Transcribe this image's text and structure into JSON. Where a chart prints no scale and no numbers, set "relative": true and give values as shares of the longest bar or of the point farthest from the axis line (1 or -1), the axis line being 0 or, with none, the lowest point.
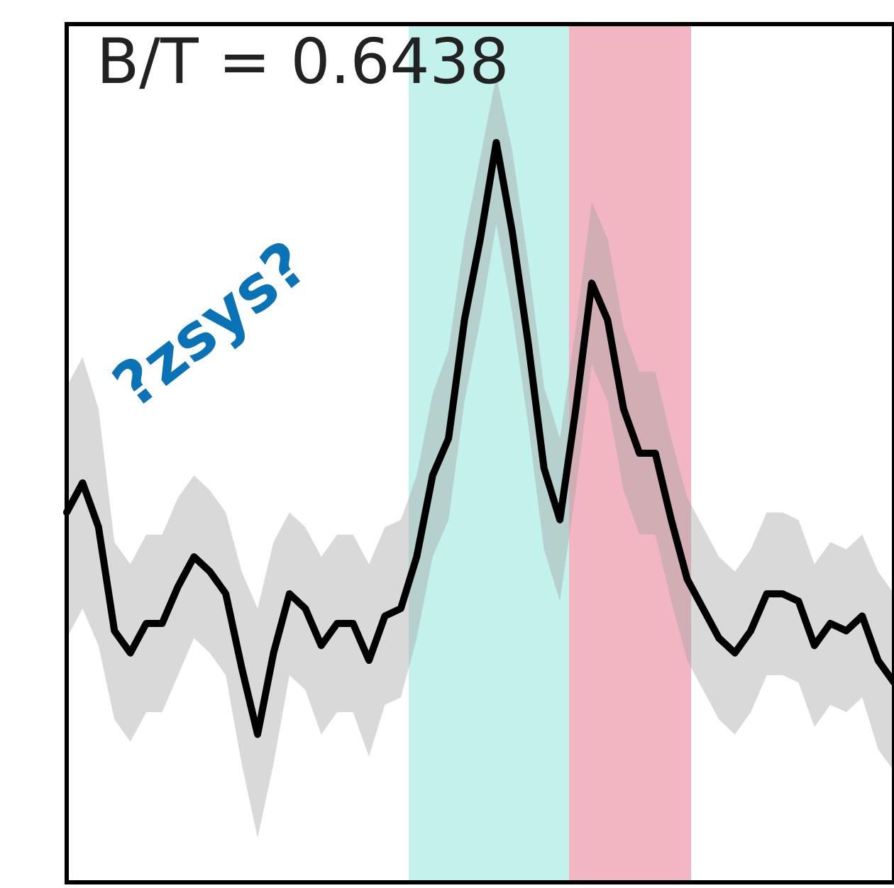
{
  "chart_data": {
    "type": "line",
    "relative": true,
    "categories": [
      null,
      null,
      null,
      null,
      null,
      null,
      null,
      null,
      null,
      null,
      null,
      null,
      null,
      null,
      null,
      null,
      null,
      null,
      null,
      null,
      null,
      null,
      null,
      null,
      null,
      null,
      null,
      null,
      null,
      null,
      null,
      null,
      null,
      null,
      null,
      null,
      null,
      null,
      null,
      null,
      null,
      null,
      null,
      null,
      null,
      null,
      null,
      null,
      null,
      null,
      null,
      null,
      null
    ],
    "series": [
      {
        "color": "#000000",
        "values": [
          0.5,
          0.54,
          0.48,
          0.34,
          0.31,
          0.35,
          0.35,
          0.4,
          0.44,
          0.42,
          0.39,
          0.29,
          0.2,
          0.31,
          0.39,
          0.37,
          0.32,
          0.35,
          0.35,
          0.3,
          0.36,
          0.37,
          0.44,
          0.55,
          0.6,
          0.76,
          0.87,
          1.0,
          0.88,
          0.73,
          0.56,
          0.49,
          0.64,
          0.81,
          0.76,
          0.64,
          0.58,
          0.58,
          0.49,
          0.41,
          0.37,
          0.33,
          0.31,
          0.34,
          0.39,
          0.39,
          0.38,
          0.32,
          0.35,
          0.34,
          0.36,
          0.3,
          0.27
        ],
        "upper": [
          0.67,
          0.71,
          0.64,
          0.46,
          0.43,
          0.47,
          0.47,
          0.52,
          0.55,
          0.53,
          0.5,
          0.42,
          0.37,
          0.46,
          0.5,
          0.48,
          0.44,
          0.47,
          0.47,
          0.43,
          0.48,
          0.49,
          0.55,
          0.66,
          0.72,
          0.87,
          0.98,
          1.09,
          0.99,
          0.84,
          0.67,
          0.6,
          0.75,
          0.92,
          0.87,
          0.75,
          0.69,
          0.69,
          0.6,
          0.52,
          0.48,
          0.44,
          0.42,
          0.45,
          0.5,
          0.5,
          0.49,
          0.43,
          0.46,
          0.45,
          0.47,
          0.42,
          0.39
        ],
        "lower": [
          0.33,
          0.37,
          0.32,
          0.22,
          0.19,
          0.23,
          0.23,
          0.28,
          0.33,
          0.31,
          0.28,
          0.16,
          0.06,
          0.16,
          0.28,
          0.26,
          0.2,
          0.23,
          0.23,
          0.17,
          0.24,
          0.25,
          0.33,
          0.44,
          0.49,
          0.65,
          0.76,
          0.89,
          0.77,
          0.62,
          0.45,
          0.38,
          0.53,
          0.7,
          0.65,
          0.53,
          0.47,
          0.47,
          0.38,
          0.3,
          0.26,
          0.22,
          0.2,
          0.23,
          0.28,
          0.28,
          0.27,
          0.21,
          0.24,
          0.23,
          0.25,
          0.18,
          0.15
        ]
      }
    ],
    "annotations": [
      "B/T = 0.6438",
      "?zsys?"
    ]
  }
}
